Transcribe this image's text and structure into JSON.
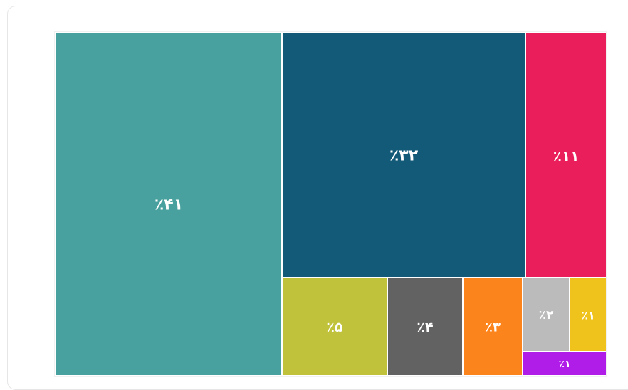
{
  "chart_data": {
    "type": "treemap",
    "title": "",
    "items": [
      {
        "label": "٪۴۱",
        "value": 41,
        "color": "#48a19e"
      },
      {
        "label": "٪۳۲",
        "value": 32,
        "color": "#135a78"
      },
      {
        "label": "٪۱۱",
        "value": 11,
        "color": "#e91e5a"
      },
      {
        "label": "٪۵",
        "value": 5,
        "color": "#bfc23a"
      },
      {
        "label": "٪۴",
        "value": 4,
        "color": "#626262"
      },
      {
        "label": "٪۳",
        "value": 3,
        "color": "#fc841c"
      },
      {
        "label": "٪۲",
        "value": 2,
        "color": "#bbbbbb"
      },
      {
        "label": "٪۱",
        "value": 1,
        "color": "#efc21c"
      },
      {
        "label": "٪۱",
        "value": 1,
        "color": "#b01ce8"
      }
    ]
  }
}
